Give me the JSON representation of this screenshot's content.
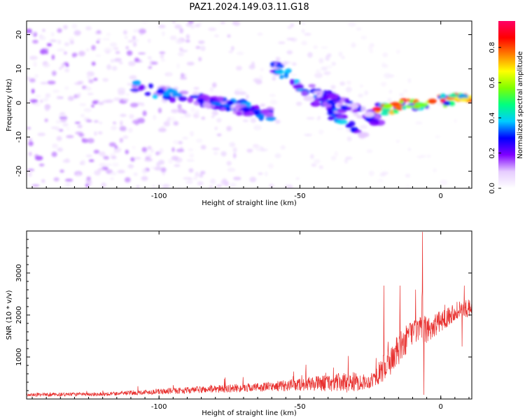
{
  "figure": {
    "title": "PAZ1.2024.149.03.11.G18"
  },
  "chart_data": [
    {
      "type": "heatmap",
      "xlabel": "Height of straight line (km)",
      "ylabel": "Frequency (Hz)",
      "xlim": [
        -147,
        11
      ],
      "ylim": [
        -25,
        24
      ],
      "xticks": [
        -100,
        -50,
        0
      ],
      "xtick_labels": [
        "-100",
        "-50",
        "0"
      ],
      "yticks": [
        -20,
        -10,
        0,
        10,
        20
      ],
      "ytick_labels": [
        "-20",
        "-10",
        "0",
        "10",
        "20"
      ],
      "colorbar": {
        "label": "Normalized spectral amplitude",
        "range": [
          0,
          0.95
        ],
        "ticks": [
          0.0,
          0.2,
          0.4,
          0.6,
          0.8
        ],
        "tick_labels": [
          "0.0",
          "0.2",
          "0.4",
          "0.6",
          "0.8"
        ],
        "colormap": [
          "#ffffff",
          "#e6ccff",
          "#8000ff",
          "#0000ff",
          "#00ccff",
          "#00ff80",
          "#80ff00",
          "#ffff00",
          "#ff8000",
          "#ff0000",
          "#ff0066"
        ]
      },
      "features": [
        {
          "x0": -112,
          "y0": 5,
          "x1": -60,
          "y1": -3,
          "amplitude": 0.35
        },
        {
          "x0": -85,
          "y0": 1,
          "x1": -60,
          "y1": -4,
          "amplitude": 0.3
        },
        {
          "x0": -60,
          "y0": 11,
          "x1": -28,
          "y1": -9,
          "amplitude": 0.35
        },
        {
          "x0": -45,
          "y0": 4,
          "x1": -22,
          "y1": -5,
          "amplitude": 0.25
        },
        {
          "x0": -22,
          "y0": -2,
          "x1": 11,
          "y1": 2,
          "amplitude": 0.75
        }
      ],
      "grid": false
    },
    {
      "type": "line",
      "xlabel": "Height of straight line (km)",
      "ylabel": "SNR (10 * v/v)",
      "xlim": [
        -147,
        11
      ],
      "ylim": [
        0,
        4000
      ],
      "xticks": [
        -100,
        -50,
        0
      ],
      "xtick_labels": [
        "-100",
        "-50",
        "0"
      ],
      "yticks": [
        1000,
        2000,
        3000
      ],
      "ytick_labels": [
        "1000",
        "2000",
        "3000"
      ],
      "color": "#e8312f",
      "envelope": [
        {
          "x": -147,
          "base": 80,
          "noise": 80
        },
        {
          "x": -120,
          "base": 100,
          "noise": 90
        },
        {
          "x": -100,
          "base": 150,
          "noise": 130
        },
        {
          "x": -80,
          "base": 200,
          "noise": 180
        },
        {
          "x": -60,
          "base": 250,
          "noise": 230
        },
        {
          "x": -45,
          "base": 300,
          "noise": 350
        },
        {
          "x": -32,
          "base": 300,
          "noise": 500
        },
        {
          "x": -25,
          "base": 350,
          "noise": 300
        },
        {
          "x": -20,
          "base": 600,
          "noise": 700
        },
        {
          "x": -15,
          "base": 1000,
          "noise": 800
        },
        {
          "x": -10,
          "base": 1500,
          "noise": 600
        },
        {
          "x": -5,
          "base": 1500,
          "noise": 700
        },
        {
          "x": 0,
          "base": 1750,
          "noise": 500
        },
        {
          "x": 5,
          "base": 2000,
          "noise": 450
        },
        {
          "x": 11,
          "base": 2100,
          "noise": 400
        }
      ],
      "spikes": [
        {
          "x": -20.2,
          "y": 2700
        },
        {
          "x": -19.3,
          "y": 600
        },
        {
          "x": -14.5,
          "y": 2700
        },
        {
          "x": -6.5,
          "y": 3980
        },
        {
          "x": -6.0,
          "y": 100
        },
        {
          "x": -5.5,
          "y": 1800
        },
        {
          "x": 7.5,
          "y": 1250
        },
        {
          "x": 8.3,
          "y": 2700
        }
      ],
      "grid": false
    }
  ]
}
